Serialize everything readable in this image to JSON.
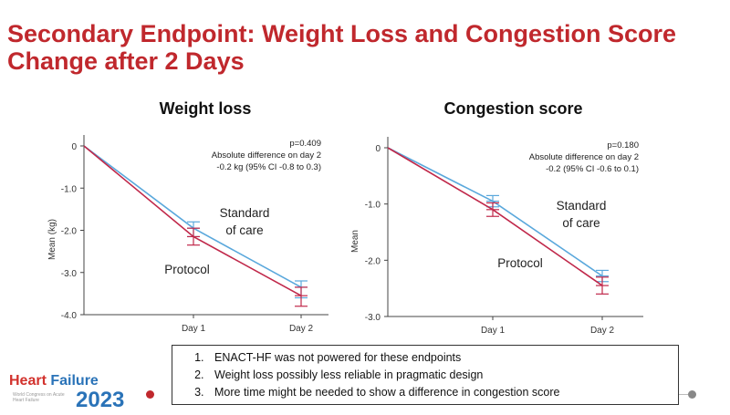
{
  "slide": {
    "title": "Secondary Endpoint: Weight Loss and Congestion Score Change after 2 Days"
  },
  "colors": {
    "title": "#c0282d",
    "protocol": "#c0284a",
    "standard_of_care": "#5aa8dc"
  },
  "chart_data": [
    {
      "type": "line",
      "title": "Weight loss",
      "ylabel": "Mean (kg)",
      "xlabel": "",
      "x_categories": [
        "",
        "Day 1",
        "Day 2"
      ],
      "y_ticks": [
        "0",
        "-1.0",
        "-2.0",
        "-3.0",
        "-4.0"
      ],
      "ylim": [
        -4.0,
        0
      ],
      "stat_lines": [
        "p=0.409",
        "Absolute difference on day 2",
        "-0.2 kg (95% CI -0.8 to 0.3)"
      ],
      "series": [
        {
          "name": "Standard of care",
          "values": [
            0,
            -1.95,
            -3.35
          ],
          "err_low": [
            0,
            -2.15,
            -3.6
          ],
          "err_high": [
            0,
            -1.8,
            -3.2
          ]
        },
        {
          "name": "Protocol",
          "values": [
            0,
            -2.15,
            -3.55
          ],
          "err_low": [
            0,
            -2.35,
            -3.8
          ],
          "err_high": [
            0,
            -1.95,
            -3.35
          ]
        }
      ],
      "labels": {
        "standard_of_care": [
          "Standard",
          "of care"
        ],
        "protocol": "Protocol"
      }
    },
    {
      "type": "line",
      "title": "Congestion score",
      "ylabel": "Mean",
      "xlabel": "",
      "x_categories": [
        "",
        "Day 1",
        "Day 2"
      ],
      "y_ticks": [
        "0",
        "-1.0",
        "-2.0",
        "-3.0"
      ],
      "ylim": [
        -3.0,
        0
      ],
      "stat_lines": [
        "p=0.180",
        "Absolute difference on day 2",
        "-0.2 (95% CI -0.6 to 0.1)"
      ],
      "series": [
        {
          "name": "Standard of care",
          "values": [
            0,
            -0.95,
            -2.28
          ],
          "err_low": [
            0,
            -1.05,
            -2.38
          ],
          "err_high": [
            0,
            -0.85,
            -2.18
          ]
        },
        {
          "name": "Protocol",
          "values": [
            0,
            -1.1,
            -2.45
          ],
          "err_low": [
            0,
            -1.22,
            -2.6
          ],
          "err_high": [
            0,
            -0.98,
            -2.3
          ]
        }
      ],
      "labels": {
        "standard_of_care": [
          "Standard",
          "of care"
        ],
        "protocol": "Protocol"
      }
    }
  ],
  "notes": [
    "ENACT-HF was not powered for these endpoints",
    "Weight loss possibly less reliable in pragmatic design",
    "More time might be needed to show a difference in congestion score"
  ],
  "logo": {
    "word1": "Heart",
    "word2": "Failure",
    "year": "2023",
    "subtitle": "World Congress on Acute Heart Failure"
  }
}
